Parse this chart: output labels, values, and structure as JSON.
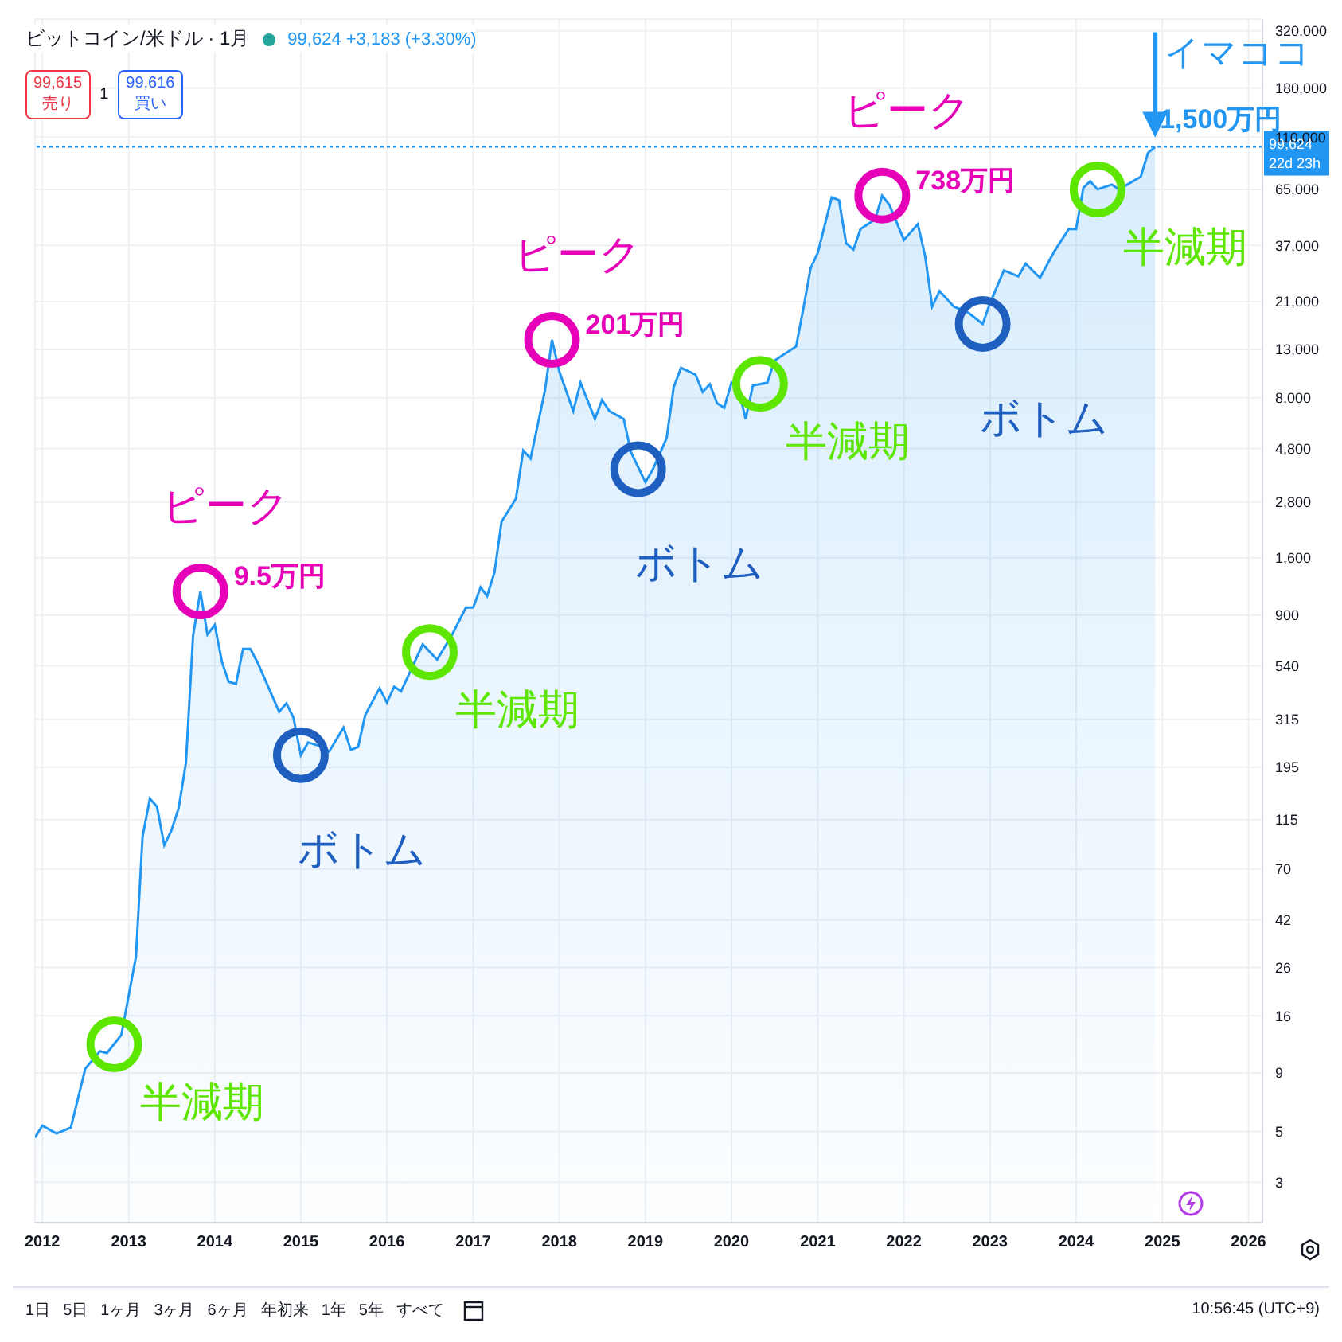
{
  "chart_data": {
    "type": "area",
    "title": "ビットコイン/米ドル · 1月",
    "subtitle": "99,624 +3,183 (+3.30%)",
    "x": [
      "2011-12",
      "2012-01",
      "2012-03",
      "2012-05",
      "2012-07",
      "2012-09",
      "2012-10",
      "2012-12",
      "2013-02",
      "2013-03",
      "2013-04",
      "2013-05",
      "2013-06",
      "2013-07",
      "2013-08",
      "2013-09",
      "2013-10",
      "2013-11",
      "2013-12",
      "2014-01",
      "2014-02",
      "2014-03",
      "2014-04",
      "2014-05",
      "2014-06",
      "2014-07",
      "2014-09",
      "2014-10",
      "2014-11",
      "2014-12",
      "2015-01",
      "2015-02",
      "2015-04",
      "2015-05",
      "2015-07",
      "2015-08",
      "2015-09",
      "2015-10",
      "2015-12",
      "2016-01",
      "2016-02",
      "2016-03",
      "2016-04",
      "2016-06",
      "2016-08",
      "2016-10",
      "2016-12",
      "2017-01",
      "2017-02",
      "2017-03",
      "2017-04",
      "2017-05",
      "2017-07",
      "2017-08",
      "2017-09",
      "2017-11",
      "2017-12",
      "2018-01",
      "2018-03",
      "2018-04",
      "2018-06",
      "2018-07",
      "2018-08",
      "2018-10",
      "2018-11",
      "2019-01",
      "2019-02",
      "2019-04",
      "2019-05",
      "2019-06",
      "2019-08",
      "2019-09",
      "2019-10",
      "2019-11",
      "2019-12",
      "2020-01",
      "2020-02",
      "2020-03",
      "2020-04",
      "2020-06",
      "2020-07",
      "2020-08",
      "2020-10",
      "2020-11",
      "2020-12",
      "2021-01",
      "2021-03",
      "2021-04",
      "2021-05",
      "2021-06",
      "2021-07",
      "2021-09",
      "2021-10",
      "2021-11",
      "2022-01",
      "2022-03",
      "2022-04",
      "2022-05",
      "2022-06",
      "2022-08",
      "2022-10",
      "2022-12",
      "2023-01",
      "2023-03",
      "2023-05",
      "2023-06",
      "2023-08",
      "2023-10",
      "2023-12",
      "2024-01",
      "2024-02",
      "2024-03",
      "2024-04",
      "2024-06",
      "2024-07",
      "2024-10",
      "2024-11",
      "2024-12"
    ],
    "series": [
      {
        "color": "#2196f3",
        "values": [
          4.7,
          5.3,
          4.9,
          5.2,
          9.4,
          11.2,
          11,
          13.2,
          29,
          97,
          142,
          131,
          89,
          103,
          129,
          204,
          730,
          1140,
          740,
          815,
          560,
          460,
          450,
          640,
          640,
          560,
          400,
          340,
          370,
          320,
          220,
          250,
          239,
          228,
          290,
          232,
          239,
          329,
          431,
          373,
          438,
          418,
          490,
          670,
          574,
          730,
          970,
          970,
          1190,
          1090,
          1380,
          2300,
          2900,
          4700,
          4340,
          8600,
          14300,
          10400,
          7000,
          9300,
          6460,
          7820,
          7000,
          6460,
          4620,
          3420,
          3880,
          5330,
          8890,
          10800,
          10100,
          8470,
          9160,
          7570,
          7230,
          9300,
          8610,
          6460,
          9040,
          9300,
          11600,
          12200,
          13400,
          19700,
          29300,
          34400,
          60000,
          58200,
          37800,
          35500,
          43600,
          48100,
          61000,
          55500,
          39100,
          45800,
          33300,
          20000,
          23400,
          20000,
          18800,
          16800,
          20700,
          28800,
          27100,
          30800,
          26700,
          34900,
          43600,
          43600,
          66100,
          70500,
          65000,
          68200,
          65000,
          73800,
          93800,
          99624
        ]
      }
    ],
    "log": "y",
    "grid": true,
    "legend": false,
    "xlim": [
      "2011-12",
      "2026-03"
    ],
    "xticks": [
      "2012",
      "2013",
      "2014",
      "2015",
      "2016",
      "2017",
      "2018",
      "2019",
      "2020",
      "2021",
      "2022",
      "2023",
      "2024",
      "2025",
      "2026"
    ],
    "ylim": [
      2,
      360000
    ],
    "yticks": [
      3,
      5,
      9,
      16,
      26,
      42,
      70,
      115,
      195,
      315,
      540,
      900,
      {
        "value": 1600,
        "label": "1,600"
      },
      {
        "value": 2800,
        "label": "2,800"
      },
      {
        "value": 4800,
        "label": "4,800"
      },
      {
        "value": 8000,
        "label": "8,000"
      },
      {
        "value": 13000,
        "label": "13,000"
      },
      {
        "value": 21000,
        "label": "21,000"
      },
      {
        "value": 37000,
        "label": "37,000"
      },
      {
        "value": 65000,
        "label": "65,000"
      },
      {
        "value": 110000,
        "label": "110,000"
      },
      {
        "value": 180000,
        "label": "180,000"
      },
      {
        "value": 320000,
        "label": "320,000"
      }
    ],
    "ref_lines": [
      {
        "axis": "y",
        "value": 99624,
        "label": "99,624",
        "color": "#2196f3",
        "line_style": "dotted"
      }
    ],
    "annotations": [
      {
        "text": "ピーク",
        "x": "2013-11",
        "y": 1140
      },
      {
        "text": "9.5万円",
        "x": "2013-11",
        "y": 1140
      },
      {
        "text": "ピーク",
        "x": "2017-12",
        "y": 14300
      },
      {
        "text": "201万円",
        "x": "2017-12",
        "y": 14300
      },
      {
        "text": "ピーク",
        "x": "2021-10",
        "y": 61000
      },
      {
        "text": "738万円",
        "x": "2021-10",
        "y": 61000
      },
      {
        "text": "ボトム",
        "x": "2015-01",
        "y": 220
      },
      {
        "text": "ボトム",
        "x": "2018-12",
        "y": 3900
      },
      {
        "text": "ボトム",
        "x": "2022-12",
        "y": 16800
      },
      {
        "text": "半減期",
        "x": "2012-11",
        "y": 12
      },
      {
        "text": "半減期",
        "x": "2016-07",
        "y": 620
      },
      {
        "text": "半減期",
        "x": "2020-05",
        "y": 9200
      },
      {
        "text": "半減期",
        "x": "2024-04",
        "y": 65000
      },
      {
        "text": "イマココ",
        "x": "2024-12",
        "y": 99624
      },
      {
        "text": "1,500万円",
        "x": "2024-12",
        "y": 99624
      },
      "99,615",
      "売り",
      "1",
      "99,616",
      "買い",
      "22d 23h",
      "1日",
      "5日",
      "1ヶ月",
      "3ヶ月",
      "6ヶ月",
      "年初来",
      "1年",
      "5年",
      "すべて",
      "10:56:45 (UTC+9)"
    ]
  }
}
